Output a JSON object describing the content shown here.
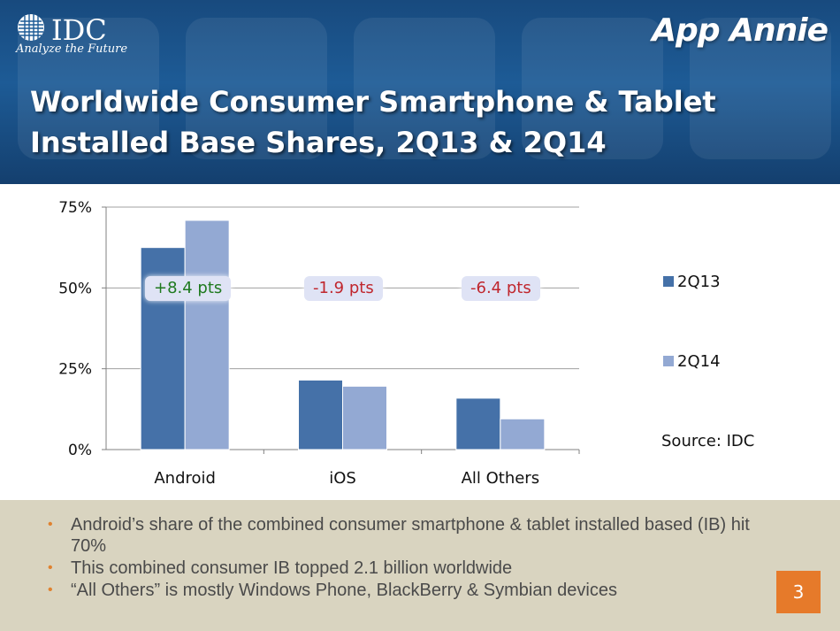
{
  "header": {
    "idc_logo": "IDC",
    "idc_tagline": "Analyze the Future",
    "brand": "App Annie",
    "title_line1": "Worldwide Consumer Smartphone & Tablet",
    "title_line2": "Installed Base Shares, 2Q13 & 2Q14"
  },
  "chart_data": {
    "type": "bar",
    "categories": [
      "Android",
      "iOS",
      "All Others"
    ],
    "series": [
      {
        "name": "2Q13",
        "values": [
          62.5,
          21.5,
          15.9
        ],
        "color": "#4571a8"
      },
      {
        "name": "2Q14",
        "values": [
          70.9,
          19.6,
          9.5
        ],
        "color": "#93a9d3"
      }
    ],
    "ylim": [
      0,
      75
    ],
    "yticks": [
      0,
      25,
      50,
      75
    ],
    "ytick_labels": [
      "0%",
      "25%",
      "50%",
      "75%"
    ],
    "grid": true,
    "legend": "right",
    "annotations": [
      "+8.4 pts",
      "-1.9 pts",
      "-6.4 pts"
    ],
    "source": "Source: IDC"
  },
  "bullets": [
    "Android’s share of the combined consumer smartphone & tablet installed based (IB) hit 70%",
    "This combined consumer IB topped 2.1 billion worldwide",
    "“All Others” is mostly Windows Phone, BlackBerry & Symbian devices"
  ],
  "page_number": "3",
  "colors": {
    "header_blue": "#1d5b96",
    "accent_orange": "#e67a2a",
    "footer_tan": "#d9d4c0"
  }
}
